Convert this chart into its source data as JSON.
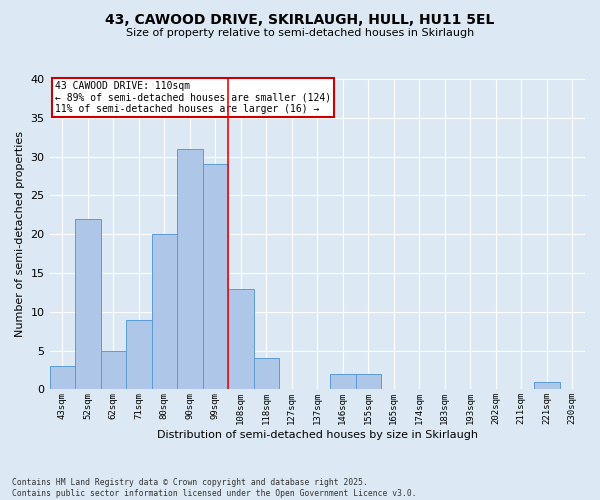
{
  "title_line1": "43, CAWOOD DRIVE, SKIRLAUGH, HULL, HU11 5EL",
  "title_line2": "Size of property relative to semi-detached houses in Skirlaugh",
  "xlabel": "Distribution of semi-detached houses by size in Skirlaugh",
  "ylabel": "Number of semi-detached properties",
  "categories": [
    "43sqm",
    "52sqm",
    "62sqm",
    "71sqm",
    "80sqm",
    "90sqm",
    "99sqm",
    "108sqm",
    "118sqm",
    "127sqm",
    "137sqm",
    "146sqm",
    "155sqm",
    "165sqm",
    "174sqm",
    "183sqm",
    "193sqm",
    "202sqm",
    "211sqm",
    "221sqm",
    "230sqm"
  ],
  "values": [
    3,
    22,
    5,
    9,
    20,
    31,
    29,
    13,
    4,
    0,
    0,
    2,
    2,
    0,
    0,
    0,
    0,
    0,
    0,
    1,
    0
  ],
  "bar_color": "#aec6e8",
  "bar_edge_color": "#5b9bd5",
  "background_color": "#dce9f5",
  "red_line_index": 7,
  "annotation_title": "43 CAWOOD DRIVE: 110sqm",
  "annotation_line2": "← 89% of semi-detached houses are smaller (124)",
  "annotation_line3": "11% of semi-detached houses are larger (16) →",
  "annotation_box_color": "#ffffff",
  "annotation_box_edge": "#cc0000",
  "footer_line1": "Contains HM Land Registry data © Crown copyright and database right 2025.",
  "footer_line2": "Contains public sector information licensed under the Open Government Licence v3.0.",
  "ylim": [
    0,
    40
  ],
  "yticks": [
    0,
    5,
    10,
    15,
    20,
    25,
    30,
    35,
    40
  ]
}
